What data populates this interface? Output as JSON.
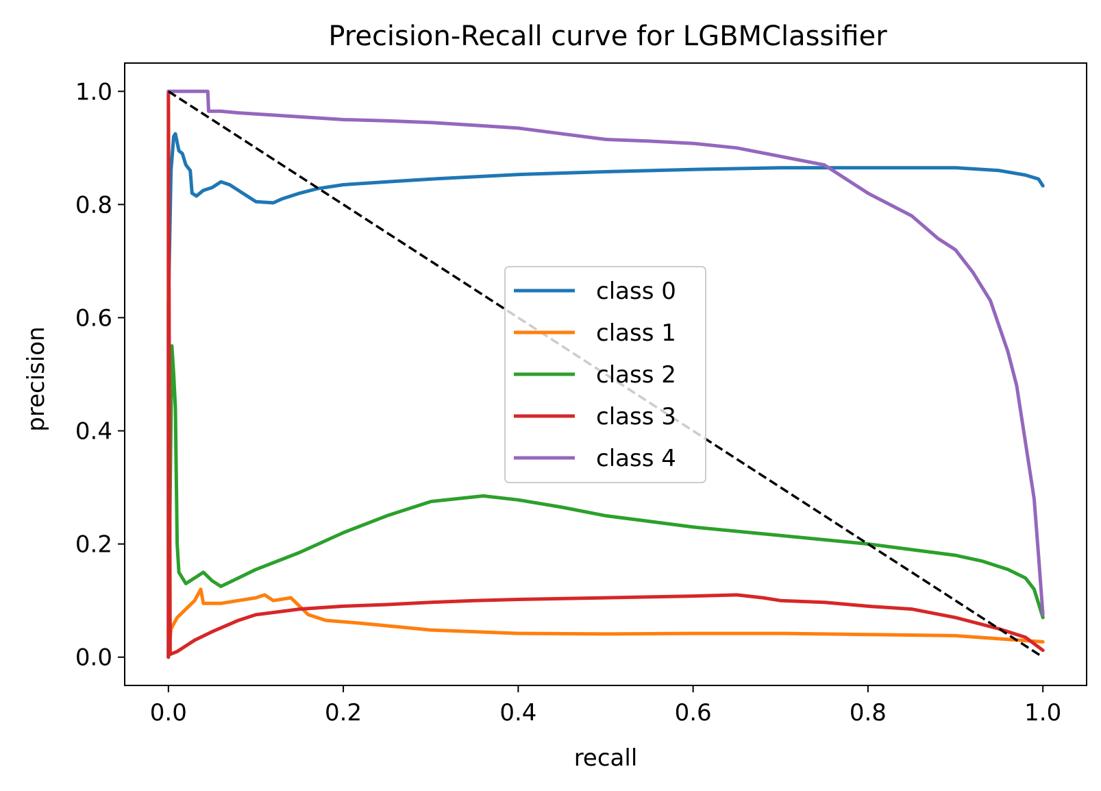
{
  "chart_data": {
    "type": "line",
    "title": "Precision-Recall curve for LGBMClassifier",
    "xlabel": "recall",
    "ylabel": "precision",
    "xlim": [
      -0.05,
      1.05
    ],
    "ylim": [
      -0.05,
      1.05
    ],
    "xticks": [
      0.0,
      0.2,
      0.4,
      0.6,
      0.8,
      1.0
    ],
    "yticks": [
      0.0,
      0.2,
      0.4,
      0.6,
      0.8,
      1.0
    ],
    "grid": false,
    "legend_position": "center",
    "series": [
      {
        "name": "class 0",
        "color": "#1f77b4",
        "points": [
          [
            0,
            0
          ],
          [
            0,
            0.62
          ],
          [
            0.003,
            0.86
          ],
          [
            0.006,
            0.92
          ],
          [
            0.008,
            0.925
          ],
          [
            0.012,
            0.895
          ],
          [
            0.016,
            0.89
          ],
          [
            0.02,
            0.87
          ],
          [
            0.025,
            0.86
          ],
          [
            0.027,
            0.82
          ],
          [
            0.032,
            0.815
          ],
          [
            0.04,
            0.825
          ],
          [
            0.05,
            0.83
          ],
          [
            0.06,
            0.84
          ],
          [
            0.07,
            0.835
          ],
          [
            0.08,
            0.825
          ],
          [
            0.09,
            0.815
          ],
          [
            0.1,
            0.805
          ],
          [
            0.12,
            0.803
          ],
          [
            0.13,
            0.81
          ],
          [
            0.15,
            0.82
          ],
          [
            0.17,
            0.828
          ],
          [
            0.2,
            0.835
          ],
          [
            0.25,
            0.84
          ],
          [
            0.3,
            0.845
          ],
          [
            0.4,
            0.853
          ],
          [
            0.5,
            0.858
          ],
          [
            0.6,
            0.862
          ],
          [
            0.7,
            0.865
          ],
          [
            0.8,
            0.865
          ],
          [
            0.9,
            0.865
          ],
          [
            0.95,
            0.86
          ],
          [
            0.98,
            0.852
          ],
          [
            0.995,
            0.845
          ],
          [
            1.0,
            0.833
          ]
        ]
      },
      {
        "name": "class 1",
        "color": "#ff7f0e",
        "points": [
          [
            0,
            0
          ],
          [
            0.003,
            0.05
          ],
          [
            0.01,
            0.07
          ],
          [
            0.02,
            0.085
          ],
          [
            0.03,
            0.1
          ],
          [
            0.037,
            0.12
          ],
          [
            0.04,
            0.095
          ],
          [
            0.06,
            0.095
          ],
          [
            0.08,
            0.1
          ],
          [
            0.1,
            0.105
          ],
          [
            0.11,
            0.11
          ],
          [
            0.12,
            0.1
          ],
          [
            0.14,
            0.105
          ],
          [
            0.15,
            0.09
          ],
          [
            0.16,
            0.075
          ],
          [
            0.18,
            0.065
          ],
          [
            0.22,
            0.06
          ],
          [
            0.3,
            0.048
          ],
          [
            0.4,
            0.042
          ],
          [
            0.5,
            0.041
          ],
          [
            0.6,
            0.042
          ],
          [
            0.7,
            0.042
          ],
          [
            0.8,
            0.04
          ],
          [
            0.9,
            0.038
          ],
          [
            1.0,
            0.027
          ]
        ]
      },
      {
        "name": "class 2",
        "color": "#2ca02c",
        "points": [
          [
            0,
            0
          ],
          [
            0.002,
            0.3
          ],
          [
            0.004,
            0.55
          ],
          [
            0.006,
            0.5
          ],
          [
            0.008,
            0.44
          ],
          [
            0.01,
            0.2
          ],
          [
            0.012,
            0.15
          ],
          [
            0.02,
            0.13
          ],
          [
            0.03,
            0.14
          ],
          [
            0.04,
            0.15
          ],
          [
            0.05,
            0.135
          ],
          [
            0.06,
            0.125
          ],
          [
            0.08,
            0.14
          ],
          [
            0.1,
            0.155
          ],
          [
            0.15,
            0.185
          ],
          [
            0.2,
            0.22
          ],
          [
            0.25,
            0.25
          ],
          [
            0.3,
            0.275
          ],
          [
            0.36,
            0.285
          ],
          [
            0.4,
            0.278
          ],
          [
            0.45,
            0.265
          ],
          [
            0.5,
            0.25
          ],
          [
            0.55,
            0.24
          ],
          [
            0.6,
            0.23
          ],
          [
            0.7,
            0.215
          ],
          [
            0.8,
            0.2
          ],
          [
            0.85,
            0.19
          ],
          [
            0.9,
            0.18
          ],
          [
            0.93,
            0.17
          ],
          [
            0.96,
            0.155
          ],
          [
            0.98,
            0.14
          ],
          [
            0.99,
            0.12
          ],
          [
            1.0,
            0.07
          ]
        ]
      },
      {
        "name": "class 3",
        "color": "#d62728",
        "points": [
          [
            0,
            0
          ],
          [
            0,
            1.0
          ],
          [
            0.002,
            0.005
          ],
          [
            0.01,
            0.01
          ],
          [
            0.03,
            0.03
          ],
          [
            0.05,
            0.045
          ],
          [
            0.08,
            0.065
          ],
          [
            0.1,
            0.075
          ],
          [
            0.15,
            0.085
          ],
          [
            0.2,
            0.09
          ],
          [
            0.25,
            0.093
          ],
          [
            0.3,
            0.097
          ],
          [
            0.35,
            0.1
          ],
          [
            0.4,
            0.102
          ],
          [
            0.5,
            0.105
          ],
          [
            0.6,
            0.108
          ],
          [
            0.65,
            0.11
          ],
          [
            0.68,
            0.105
          ],
          [
            0.7,
            0.1
          ],
          [
            0.75,
            0.097
          ],
          [
            0.8,
            0.09
          ],
          [
            0.85,
            0.085
          ],
          [
            0.9,
            0.07
          ],
          [
            0.95,
            0.05
          ],
          [
            0.98,
            0.035
          ],
          [
            1.0,
            0.012
          ]
        ]
      },
      {
        "name": "class 4",
        "color": "#9467bd",
        "points": [
          [
            0,
            1.0
          ],
          [
            0.045,
            1.0
          ],
          [
            0.046,
            0.965
          ],
          [
            0.06,
            0.965
          ],
          [
            0.08,
            0.962
          ],
          [
            0.1,
            0.96
          ],
          [
            0.15,
            0.955
          ],
          [
            0.2,
            0.95
          ],
          [
            0.25,
            0.948
          ],
          [
            0.3,
            0.945
          ],
          [
            0.35,
            0.94
          ],
          [
            0.4,
            0.935
          ],
          [
            0.45,
            0.925
          ],
          [
            0.5,
            0.915
          ],
          [
            0.55,
            0.912
          ],
          [
            0.6,
            0.908
          ],
          [
            0.65,
            0.9
          ],
          [
            0.7,
            0.885
          ],
          [
            0.75,
            0.87
          ],
          [
            0.8,
            0.82
          ],
          [
            0.85,
            0.78
          ],
          [
            0.88,
            0.74
          ],
          [
            0.9,
            0.72
          ],
          [
            0.92,
            0.68
          ],
          [
            0.94,
            0.63
          ],
          [
            0.96,
            0.54
          ],
          [
            0.97,
            0.48
          ],
          [
            0.98,
            0.38
          ],
          [
            0.99,
            0.28
          ],
          [
            0.995,
            0.18
          ],
          [
            1.0,
            0.075
          ]
        ]
      }
    ],
    "diagonal": {
      "color": "#000000",
      "style": "dashed",
      "points": [
        [
          0,
          1.0
        ],
        [
          1.0,
          0
        ]
      ]
    }
  }
}
